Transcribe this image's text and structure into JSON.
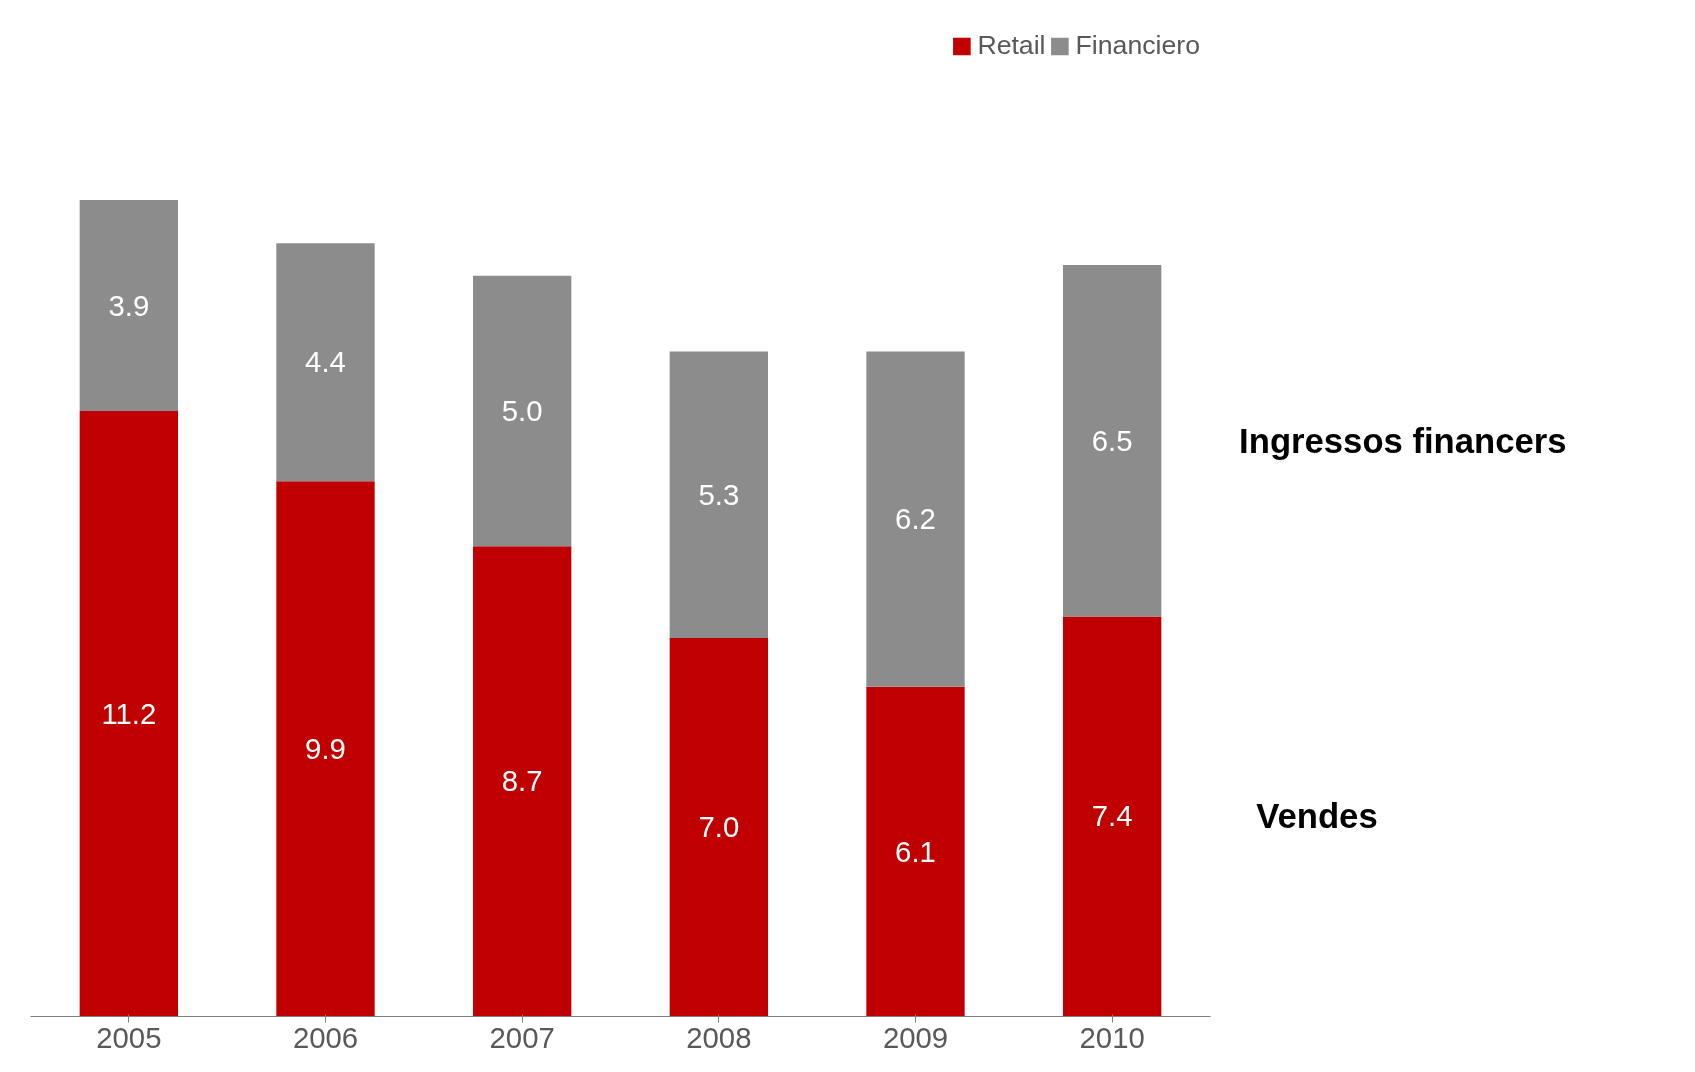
{
  "chart_data": {
    "type": "bar",
    "stacked": true,
    "categories": [
      "2005",
      "2006",
      "2007",
      "2008",
      "2009",
      "2010"
    ],
    "series": [
      {
        "name": "Retail",
        "color": "#c00000",
        "values": [
          11.2,
          9.9,
          8.7,
          7.0,
          6.1,
          7.4
        ],
        "value_labels": [
          "11.2",
          "9.9",
          "8.7",
          "7.0",
          "6.1",
          "7.4"
        ]
      },
      {
        "name": "Financiero",
        "color": "#8c8c8c",
        "values": [
          3.9,
          4.4,
          5.0,
          5.3,
          6.2,
          6.5
        ],
        "value_labels": [
          "3.9",
          "4.4",
          "5.0",
          "5.3",
          "6.2",
          "6.5"
        ]
      }
    ],
    "tick_labels": "x",
    "annotations": [
      "Ingressos financers",
      "Vendes"
    ],
    "legend": "top right",
    "grid": false
  }
}
